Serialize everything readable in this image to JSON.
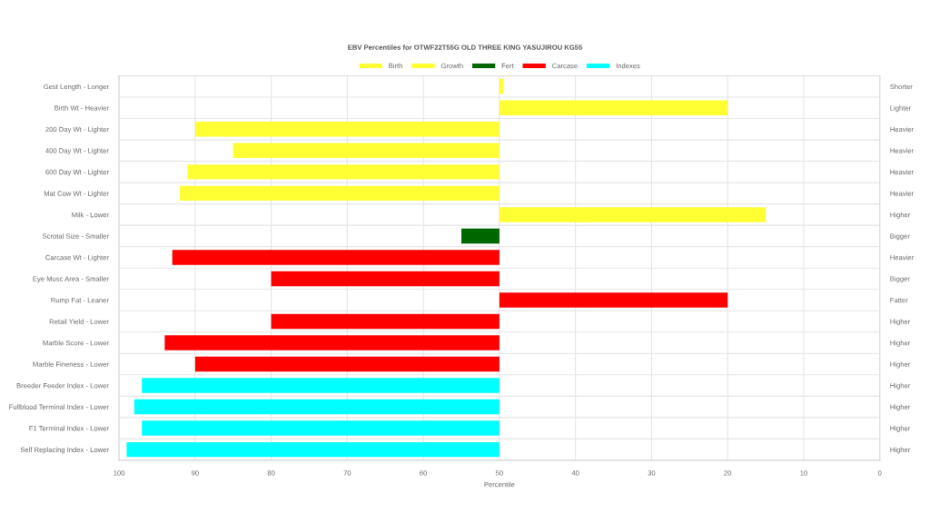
{
  "chart_data": {
    "type": "bar",
    "orientation": "horizontal",
    "title": "EBV Percentiles for OTWF22T55G OLD THREE KING YASUJIROU KG55",
    "xlabel": "Percentile",
    "categories": [
      "Gest Length - Longer",
      "Birth Wt - Heavier",
      "200 Day Wt - Lighter",
      "400 Day Wt - Lighter",
      "600 Day Wt - Lighter",
      "Mat Cow Wt - Lighter",
      "Milk - Lower",
      "Scrotal Size - Smaller",
      "Carcase Wt - Lighter",
      "Eye Musc Area - Smaller",
      "Rump Fat - Leaner",
      "Retail Yield - Lower",
      "Marble Score - Lower",
      "Marble Fineness - Lower",
      "Breeder Feeder Index - Lower",
      "Fullblood Terminal Index - Lower",
      "F1 Terminal Index - Lower",
      "Self Replacing Index - Lower"
    ],
    "y2_categories": [
      "Shorter",
      "Lighter",
      "Heavier",
      "Heavier",
      "Heavier",
      "Heavier",
      "Higher",
      "Bigger",
      "Heavier",
      "Bigger",
      "Fatter",
      "Higher",
      "Higher",
      "Higher",
      "Higher",
      "Higher",
      "Higher",
      "Higher"
    ],
    "series": [
      {
        "name": "Birth",
        "color": "#ffff33",
        "base": [
          50,
          50,
          null,
          null,
          null,
          null,
          null,
          null,
          null,
          null,
          null,
          null,
          null,
          null,
          null,
          null,
          null,
          null
        ],
        "values": [
          -0.5,
          -30,
          null,
          null,
          null,
          null,
          null,
          null,
          null,
          null,
          null,
          null,
          null,
          null,
          null,
          null,
          null,
          null
        ]
      },
      {
        "name": "Growth",
        "color": "#ffff33",
        "base": [
          null,
          null,
          50,
          50,
          50,
          50,
          50,
          null,
          null,
          null,
          null,
          null,
          null,
          null,
          null,
          null,
          null,
          null
        ],
        "values": [
          null,
          null,
          40,
          35,
          41,
          42,
          -35,
          null,
          null,
          null,
          null,
          null,
          null,
          null,
          null,
          null,
          null,
          null
        ]
      },
      {
        "name": "Fert",
        "color": "#006600",
        "base": [
          null,
          null,
          null,
          null,
          null,
          null,
          null,
          50,
          null,
          null,
          null,
          null,
          null,
          null,
          null,
          null,
          null,
          null
        ],
        "values": [
          null,
          null,
          null,
          null,
          null,
          null,
          null,
          5,
          null,
          null,
          null,
          null,
          null,
          null,
          null,
          null,
          null,
          null
        ]
      },
      {
        "name": "Carcase",
        "color": "#ff0000",
        "base": [
          null,
          null,
          null,
          null,
          null,
          null,
          null,
          null,
          50,
          50,
          50,
          50,
          50,
          50,
          null,
          null,
          null,
          null
        ],
        "values": [
          null,
          null,
          null,
          null,
          null,
          null,
          null,
          null,
          43,
          30,
          -30,
          30,
          44,
          40,
          null,
          null,
          null,
          null
        ]
      },
      {
        "name": "Indexes",
        "color": "#00ffff",
        "base": [
          null,
          null,
          null,
          null,
          null,
          null,
          null,
          null,
          null,
          null,
          null,
          null,
          null,
          null,
          50,
          50,
          50,
          50
        ],
        "values": [
          null,
          null,
          null,
          null,
          null,
          null,
          null,
          null,
          null,
          null,
          null,
          null,
          null,
          null,
          47,
          48,
          47,
          49
        ]
      }
    ],
    "xlim": [
      100,
      0
    ],
    "xticks": [
      100,
      90,
      80,
      70,
      60,
      50,
      40,
      30,
      20,
      10,
      0
    ],
    "grid": true,
    "legend": "top"
  }
}
